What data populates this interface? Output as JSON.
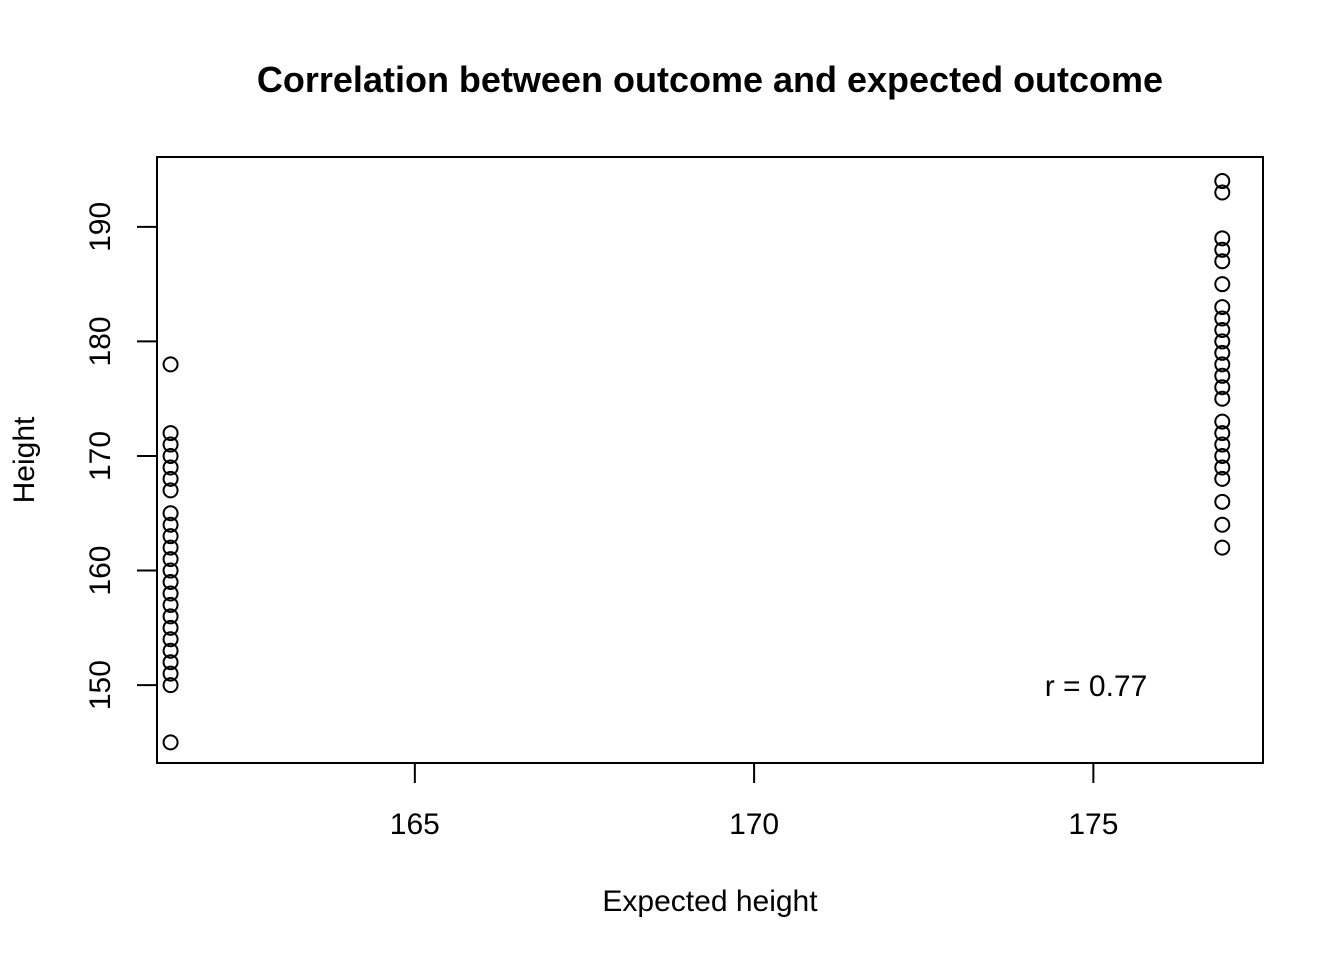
{
  "chart_data": {
    "type": "scatter",
    "title": "Correlation between outcome and expected outcome",
    "xlabel": "Expected height",
    "ylabel": "Height",
    "xlim": [
      161.2,
      177.5
    ],
    "ylim": [
      143.2,
      196.1
    ],
    "x_ticks": [
      165,
      170,
      175
    ],
    "y_ticks": [
      150,
      160,
      170,
      180,
      190
    ],
    "grid": false,
    "marker": "open-circle",
    "annotation": "r = 0.77",
    "series": [
      {
        "x": 161.4,
        "y": [
          145,
          150,
          151,
          152,
          153,
          154,
          155,
          156,
          157,
          158,
          159,
          160,
          161,
          162,
          163,
          164,
          165,
          167,
          168,
          169,
          170,
          171,
          172,
          178
        ]
      },
      {
        "x": 176.9,
        "y": [
          162,
          164,
          166,
          168,
          169,
          170,
          171,
          172,
          173,
          175,
          176,
          177,
          178,
          179,
          180,
          181,
          182,
          183,
          185,
          187,
          188,
          189,
          193,
          194
        ]
      }
    ]
  }
}
